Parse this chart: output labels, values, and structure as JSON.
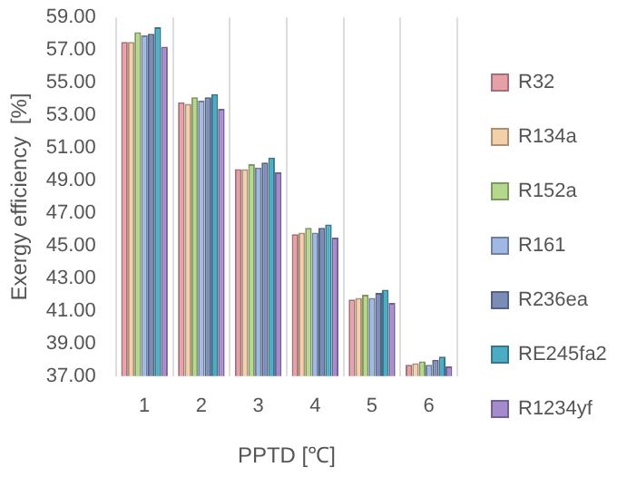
{
  "chart_data": {
    "type": "bar",
    "xlabel": "PPTD [℃]",
    "ylabel": "Exergy efficiency  [%]",
    "categories": [
      "1",
      "2",
      "3",
      "4",
      "5",
      "6"
    ],
    "series": [
      {
        "name": "R32",
        "color": "#e8a0a8",
        "values": [
          57.5,
          53.8,
          49.7,
          45.7,
          41.7,
          37.7
        ]
      },
      {
        "name": "R134a",
        "color": "#f5cfa8",
        "values": [
          57.5,
          53.7,
          49.7,
          45.8,
          41.8,
          37.8
        ]
      },
      {
        "name": "R152a",
        "color": "#b5d98a",
        "values": [
          58.1,
          54.1,
          50.0,
          46.1,
          42.0,
          37.9
        ]
      },
      {
        "name": "R161",
        "color": "#9fb8e4",
        "values": [
          57.9,
          53.9,
          49.8,
          45.8,
          41.8,
          37.7
        ]
      },
      {
        "name": "R236ea",
        "color": "#7a8cb8",
        "values": [
          58.0,
          54.1,
          50.1,
          46.1,
          42.1,
          38.0
        ]
      },
      {
        "name": "RE245fa2",
        "color": "#4bacc6",
        "values": [
          58.4,
          54.3,
          50.4,
          46.3,
          42.3,
          38.2
        ]
      },
      {
        "name": "R1234yf",
        "color": "#a68ad0",
        "values": [
          57.2,
          53.4,
          49.5,
          45.5,
          41.5,
          37.6
        ]
      }
    ],
    "ylim": [
      37,
      59
    ],
    "yticks": [
      {
        "value": 37,
        "label": "37.00"
      },
      {
        "value": 39,
        "label": "39.00"
      },
      {
        "value": 41,
        "label": "41.00"
      },
      {
        "value": 43,
        "label": "43.00"
      },
      {
        "value": 45,
        "label": "45.00"
      },
      {
        "value": 47,
        "label": "47.00"
      },
      {
        "value": 49,
        "label": "49.00"
      },
      {
        "value": 51,
        "label": "51.00"
      },
      {
        "value": 53,
        "label": "53.00"
      },
      {
        "value": 55,
        "label": "55.00"
      },
      {
        "value": 57,
        "label": "57.00"
      },
      {
        "value": 59,
        "label": "59.00"
      }
    ],
    "grid": "x",
    "legend": "right"
  }
}
